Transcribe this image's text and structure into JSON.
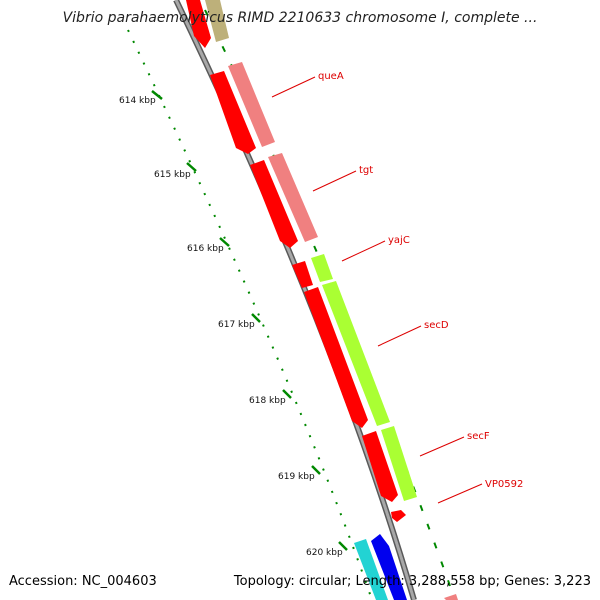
{
  "title": "Vibrio parahaemolyticus RIMD 2210633 chromosome I, complete ...",
  "footer": {
    "accession": "Accession: NC_004603",
    "summary": "Topology: circular; Length: 3,288,558 bp; Genes: 3,223"
  },
  "ticks": [
    {
      "label": "614 kbp"
    },
    {
      "label": "615 kbp"
    },
    {
      "label": "616 kbp"
    },
    {
      "label": "617 kbp"
    },
    {
      "label": "618 kbp"
    },
    {
      "label": "619 kbp"
    },
    {
      "label": "620 kbp"
    }
  ],
  "genes": [
    {
      "name": "queA"
    },
    {
      "name": "tgt"
    },
    {
      "name": "yajC"
    },
    {
      "name": "secD"
    },
    {
      "name": "secF"
    },
    {
      "name": "VP0592"
    }
  ],
  "colors": {
    "backbone": "#8c8c8c",
    "gene": "#ff0000",
    "gene_light": "#f08080",
    "gene_yellow_green": "#aaff33",
    "gene_olive": "#bdb07a",
    "gene_cyan": "#22d3d3",
    "gene_blue": "#0000ee",
    "tick": "#008800",
    "label": "#dd0000"
  }
}
